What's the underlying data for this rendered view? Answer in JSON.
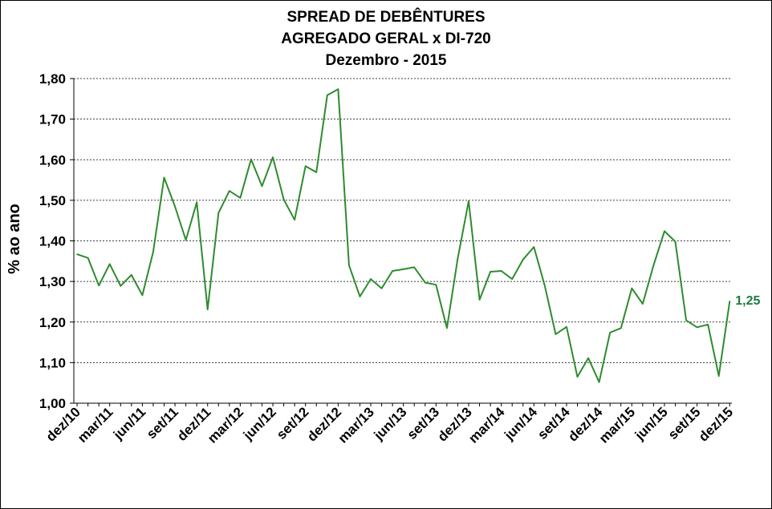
{
  "chart_data": {
    "type": "line",
    "title_lines": [
      "SPREAD DE DEBÊNTURES",
      "AGREGADO GERAL x DI-720",
      "Dezembro - 2015"
    ],
    "ylabel": "% ao ano",
    "xlabel": "",
    "ylim": [
      1.0,
      1.8
    ],
    "yticks": [
      "1,00",
      "1,10",
      "1,20",
      "1,30",
      "1,40",
      "1,50",
      "1,60",
      "1,70",
      "1,80"
    ],
    "grid": "horizontal dashed",
    "line_color": "#2e8b2e",
    "label_color": "#1e7a3c",
    "xtick_labels": [
      "dez/10",
      "mar/11",
      "jun/11",
      "set/11",
      "dez/11",
      "mar/12",
      "jun/12",
      "set/12",
      "dez/12",
      "mar/13",
      "jun/13",
      "set/13",
      "dez/13",
      "mar/14",
      "jun/14",
      "set/14",
      "dez/14",
      "mar/15",
      "jun/15",
      "set/15",
      "dez/15"
    ],
    "x": [
      "dez/10",
      "jan/11",
      "fev/11",
      "mar/11",
      "abr/11",
      "mai/11",
      "jun/11",
      "jul/11",
      "ago/11",
      "set/11",
      "out/11",
      "nov/11",
      "dez/11",
      "jan/12",
      "fev/12",
      "mar/12",
      "abr/12",
      "mai/12",
      "jun/12",
      "jul/12",
      "ago/12",
      "set/12",
      "out/12",
      "nov/12",
      "dez/12",
      "jan/13",
      "fev/13",
      "mar/13",
      "abr/13",
      "mai/13",
      "jun/13",
      "jul/13",
      "ago/13",
      "set/13",
      "out/13",
      "nov/13",
      "dez/13",
      "jan/14",
      "fev/14",
      "mar/14",
      "abr/14",
      "mai/14",
      "jun/14",
      "jul/14",
      "ago/14",
      "set/14",
      "out/14",
      "nov/14",
      "dez/14",
      "jan/15",
      "fev/15",
      "mar/15",
      "abr/15",
      "mai/15",
      "jun/15",
      "jul/15",
      "ago/15",
      "set/15",
      "out/15",
      "nov/15",
      "dez/15"
    ],
    "values": [
      1.367,
      1.358,
      1.29,
      1.343,
      1.289,
      1.316,
      1.266,
      1.373,
      1.556,
      1.485,
      1.402,
      1.495,
      1.231,
      1.469,
      1.523,
      1.506,
      1.601,
      1.535,
      1.606,
      1.502,
      1.452,
      1.584,
      1.569,
      1.759,
      1.774,
      1.34,
      1.263,
      1.306,
      1.283,
      1.326,
      1.33,
      1.335,
      1.297,
      1.292,
      1.185,
      1.357,
      1.498,
      1.255,
      1.324,
      1.326,
      1.306,
      1.354,
      1.385,
      1.289,
      1.17,
      1.188,
      1.065,
      1.111,
      1.052,
      1.174,
      1.185,
      1.283,
      1.245,
      1.34,
      1.424,
      1.398,
      1.204,
      1.187,
      1.194,
      1.067,
      1.251
    ],
    "end_label": "1,25"
  }
}
